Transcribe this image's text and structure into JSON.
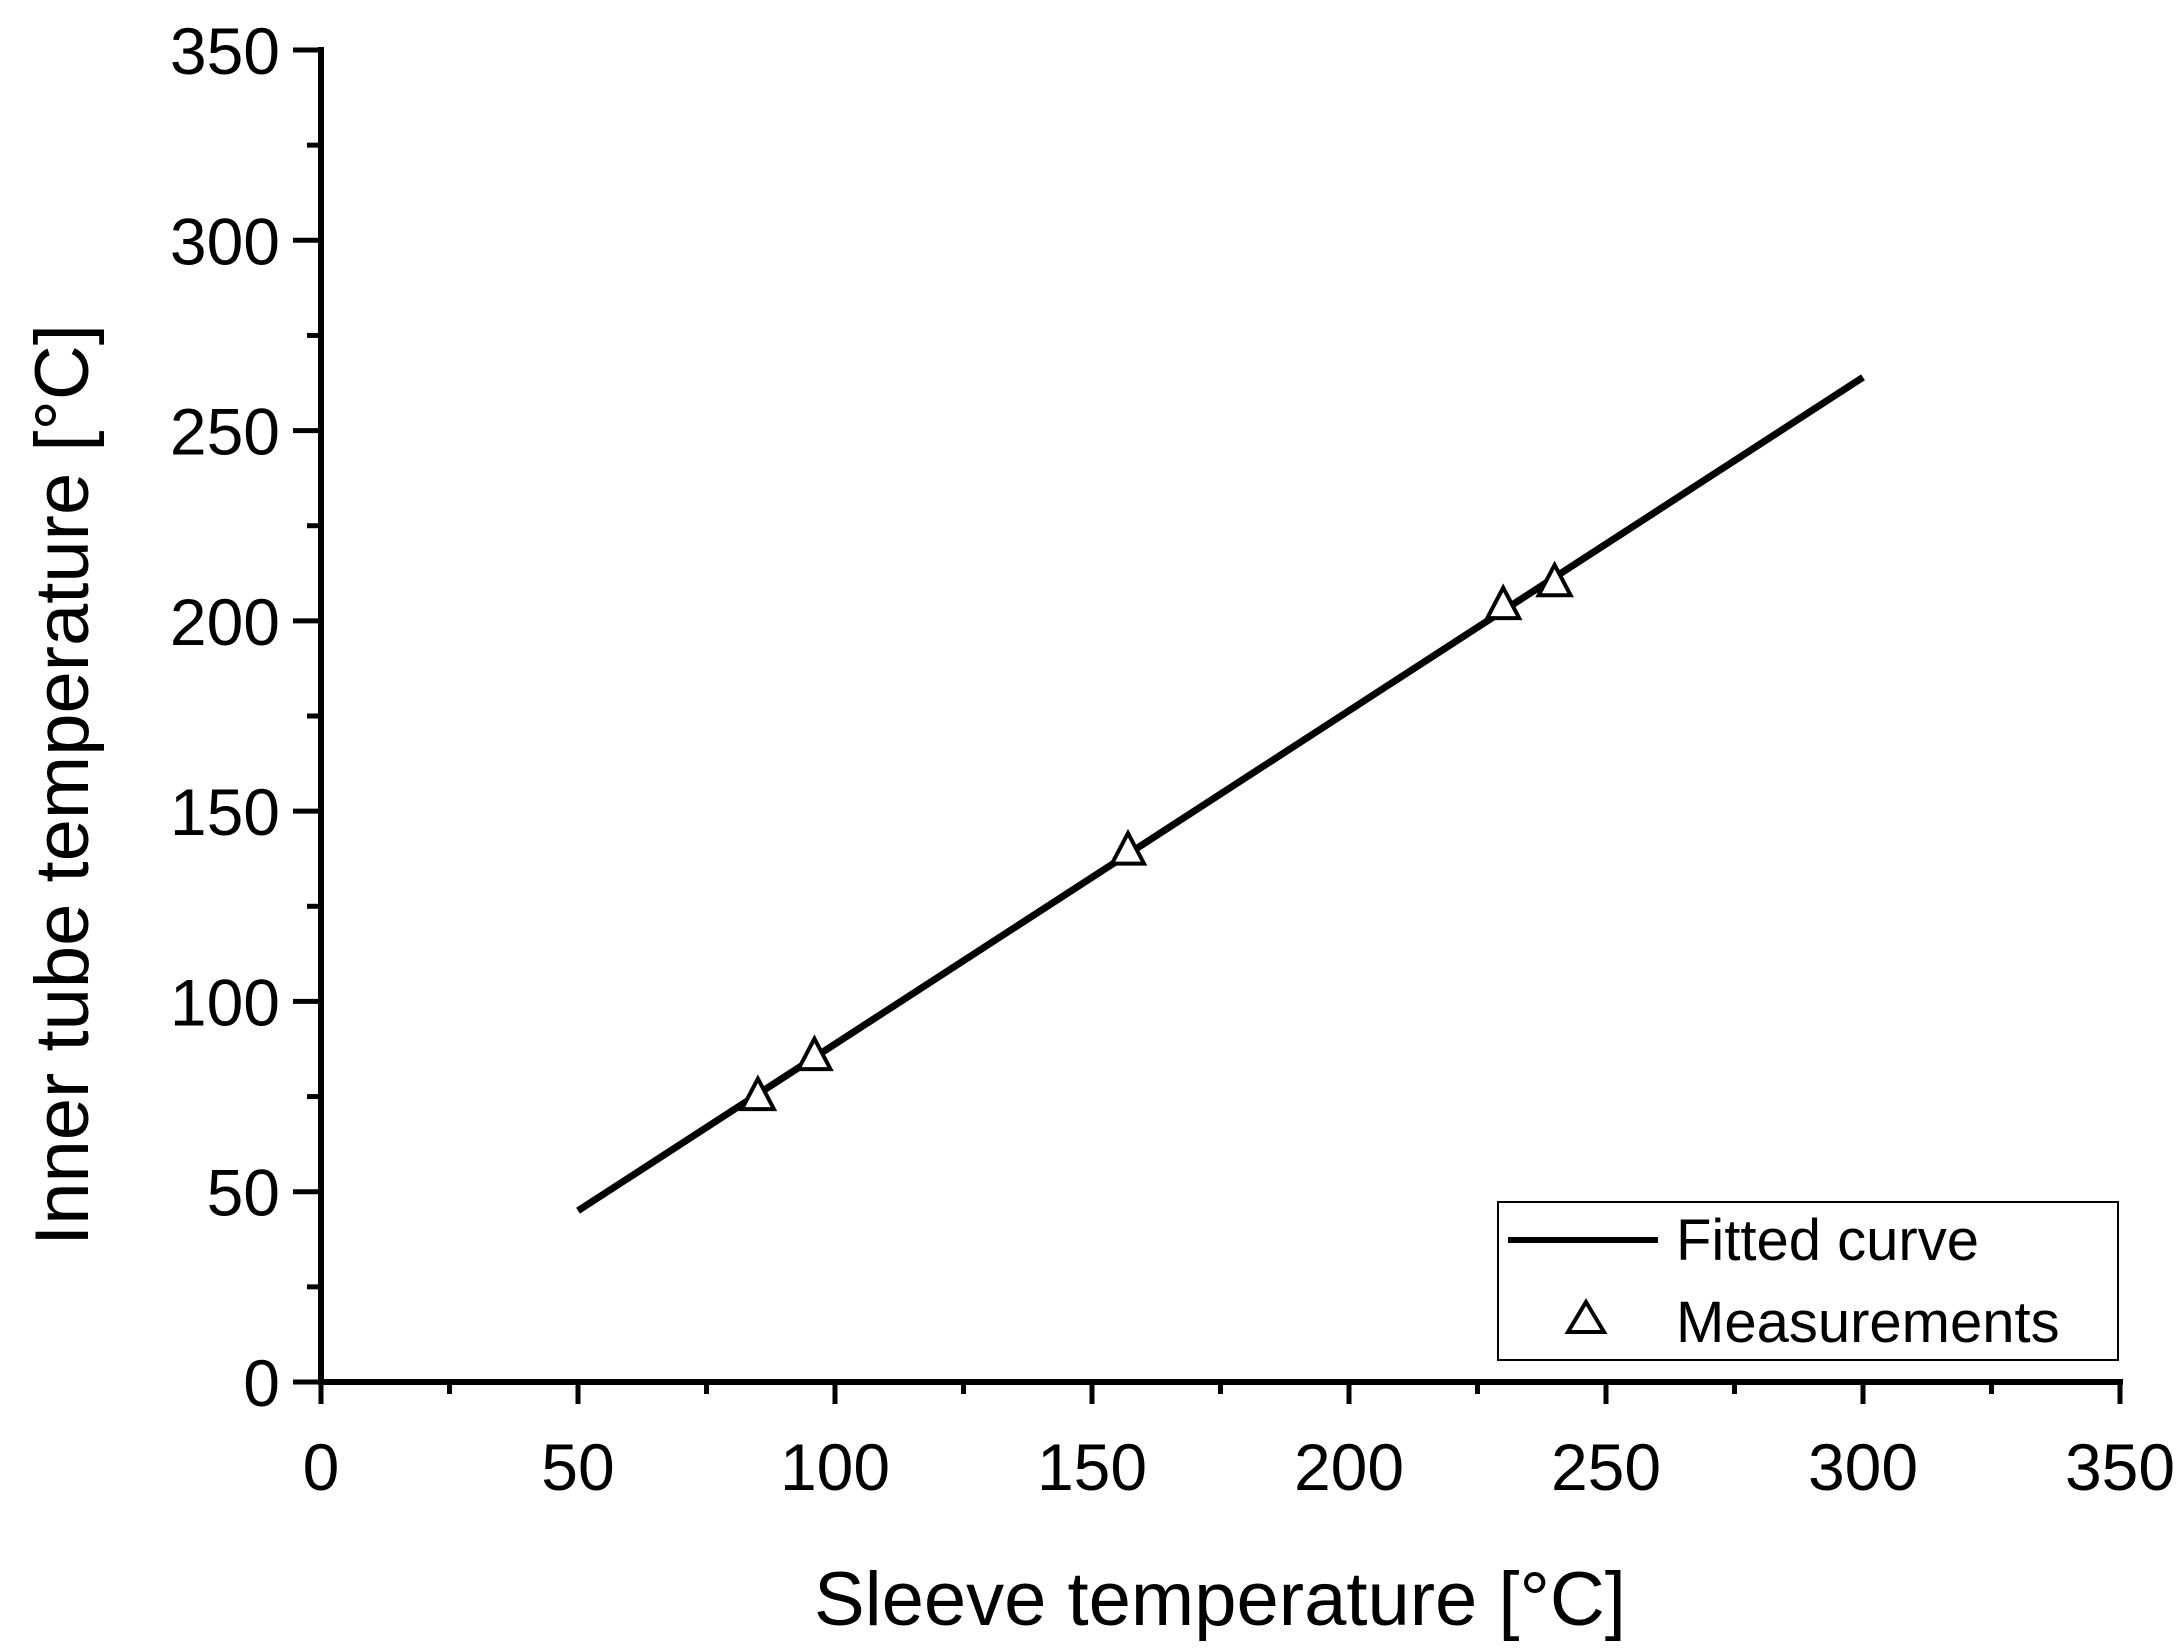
{
  "chart_data": {
    "type": "line",
    "title": "",
    "xlabel": "Sleeve temperature [°C]",
    "ylabel": "Inner tube temperature [°C]",
    "xlim": [
      0,
      350
    ],
    "ylim": [
      0,
      350
    ],
    "x_ticks": [
      0,
      50,
      100,
      150,
      200,
      250,
      300,
      350
    ],
    "x_tick_labels": [
      "0",
      "50",
      "100",
      "150",
      "200",
      "250",
      "300",
      "350"
    ],
    "y_ticks": [
      0,
      50,
      100,
      150,
      200,
      250,
      300,
      350
    ],
    "y_tick_labels": [
      "0",
      "50",
      "100",
      "150",
      "200",
      "250",
      "300",
      "350"
    ],
    "x_minor_step": 25,
    "y_minor_step": 25,
    "grid": false,
    "legend_position": "bottom-right",
    "series": [
      {
        "name": "Fitted curve",
        "kind": "line",
        "color": "#000000",
        "x": [
          50,
          300
        ],
        "y": [
          45,
          264
        ]
      },
      {
        "name": "Measurements",
        "kind": "scatter",
        "marker": "open-triangle",
        "color": "#000000",
        "x": [
          85,
          96,
          157,
          230,
          240
        ],
        "y": [
          75.5,
          86,
          140,
          204.5,
          210.5
        ]
      }
    ]
  }
}
